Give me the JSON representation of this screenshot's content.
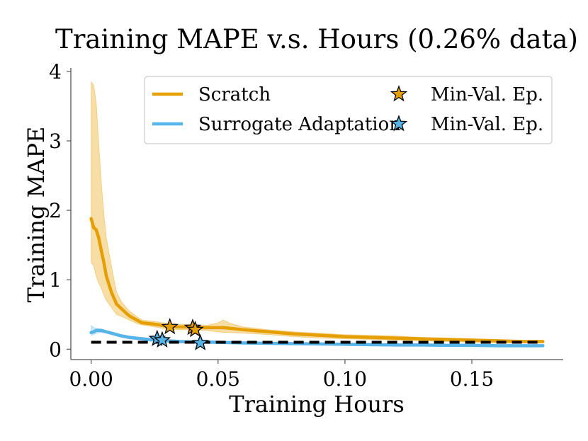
{
  "chart_data": {
    "type": "line",
    "title": "Training MAPE v.s. Hours (0.26% data)",
    "xlabel": "Training Hours",
    "ylabel": "Training MAPE",
    "xlim": [
      -0.008,
      0.186
    ],
    "ylim": [
      -0.15,
      4.05
    ],
    "xticks": [
      0.0,
      0.05,
      0.1,
      0.15
    ],
    "xtick_labels": [
      "0.00",
      "0.05",
      "0.10",
      "0.15"
    ],
    "yticks": [
      0,
      1,
      2,
      3,
      4
    ],
    "ytick_labels": [
      "0",
      "1",
      "2",
      "3",
      "4"
    ],
    "legend": {
      "placement": "top-right",
      "entries": [
        {
          "label": "Scratch",
          "marker": "line",
          "color": "#E69F00"
        },
        {
          "label": "Min-Val. Ep.",
          "marker": "star",
          "color": "#E69F00"
        },
        {
          "label": "Surrogate Adaptation",
          "marker": "line",
          "color": "#56B4E9"
        },
        {
          "label": "Min-Val. Ep.",
          "marker": "star",
          "color": "#56B4E9"
        }
      ]
    },
    "reference_line": {
      "y": 0.1,
      "style": "dashed",
      "color": "#000000"
    },
    "series": [
      {
        "name": "Scratch",
        "color": "#E69F00",
        "band_color": "#F2C66A",
        "x": [
          0.0,
          0.001,
          0.002,
          0.003,
          0.004,
          0.005,
          0.006,
          0.008,
          0.01,
          0.012,
          0.015,
          0.018,
          0.02,
          0.025,
          0.03,
          0.035,
          0.04,
          0.045,
          0.05,
          0.052,
          0.055,
          0.06,
          0.07,
          0.08,
          0.09,
          0.1,
          0.11,
          0.12,
          0.13,
          0.14,
          0.15,
          0.16,
          0.17,
          0.178
        ],
        "y": [
          1.88,
          1.75,
          1.72,
          1.6,
          1.42,
          1.25,
          1.05,
          0.82,
          0.65,
          0.58,
          0.48,
          0.42,
          0.38,
          0.36,
          0.33,
          0.32,
          0.32,
          0.31,
          0.31,
          0.31,
          0.3,
          0.28,
          0.25,
          0.22,
          0.2,
          0.18,
          0.17,
          0.16,
          0.15,
          0.14,
          0.13,
          0.12,
          0.11,
          0.11
        ],
        "upper": [
          3.85,
          3.8,
          3.55,
          2.95,
          2.4,
          1.95,
          1.6,
          1.2,
          0.82,
          0.68,
          0.55,
          0.47,
          0.42,
          0.4,
          0.37,
          0.36,
          0.35,
          0.34,
          0.38,
          0.42,
          0.37,
          0.32,
          0.28,
          0.25,
          0.23,
          0.21,
          0.2,
          0.19,
          0.17,
          0.16,
          0.15,
          0.14,
          0.13,
          0.13
        ],
        "lower": [
          1.25,
          1.2,
          1.05,
          0.95,
          0.88,
          0.78,
          0.7,
          0.6,
          0.5,
          0.47,
          0.42,
          0.37,
          0.35,
          0.32,
          0.29,
          0.28,
          0.28,
          0.27,
          0.25,
          0.24,
          0.24,
          0.23,
          0.21,
          0.18,
          0.16,
          0.15,
          0.14,
          0.13,
          0.12,
          0.11,
          0.1,
          0.09,
          0.09,
          0.09
        ]
      },
      {
        "name": "Surrogate Adaptation",
        "color": "#56B4E9",
        "band_color": "#A9D8F3",
        "x": [
          0.0,
          0.001,
          0.002,
          0.004,
          0.006,
          0.008,
          0.01,
          0.012,
          0.015,
          0.02,
          0.025,
          0.03,
          0.035,
          0.04,
          0.05,
          0.06,
          0.07,
          0.08,
          0.09,
          0.1,
          0.11,
          0.12,
          0.13,
          0.14,
          0.15,
          0.16,
          0.17,
          0.178
        ],
        "y": [
          0.24,
          0.25,
          0.27,
          0.27,
          0.25,
          0.23,
          0.21,
          0.19,
          0.17,
          0.15,
          0.13,
          0.12,
          0.11,
          0.105,
          0.1,
          0.09,
          0.085,
          0.08,
          0.075,
          0.07,
          0.065,
          0.06,
          0.06,
          0.055,
          0.055,
          0.05,
          0.05,
          0.05
        ],
        "upper": [
          0.34,
          0.31,
          0.3,
          0.29,
          0.27,
          0.25,
          0.23,
          0.21,
          0.19,
          0.17,
          0.15,
          0.14,
          0.13,
          0.12,
          0.115,
          0.105,
          0.1,
          0.095,
          0.09,
          0.085,
          0.08,
          0.075,
          0.075,
          0.07,
          0.07,
          0.065,
          0.065,
          0.065
        ],
        "lower": [
          0.2,
          0.21,
          0.23,
          0.24,
          0.23,
          0.21,
          0.19,
          0.17,
          0.15,
          0.13,
          0.11,
          0.1,
          0.09,
          0.085,
          0.08,
          0.075,
          0.07,
          0.065,
          0.06,
          0.055,
          0.05,
          0.045,
          0.045,
          0.04,
          0.04,
          0.035,
          0.035,
          0.035
        ]
      }
    ],
    "markers": [
      {
        "series": "Scratch",
        "x": 0.031,
        "y": 0.32,
        "color": "#E69F00"
      },
      {
        "series": "Scratch",
        "x": 0.04,
        "y": 0.31,
        "color": "#E69F00"
      },
      {
        "series": "Scratch",
        "x": 0.041,
        "y": 0.28,
        "color": "#E69F00"
      },
      {
        "series": "Surrogate Adaptation",
        "x": 0.026,
        "y": 0.15,
        "color": "#56B4E9"
      },
      {
        "series": "Surrogate Adaptation",
        "x": 0.028,
        "y": 0.13,
        "color": "#56B4E9"
      },
      {
        "series": "Surrogate Adaptation",
        "x": 0.043,
        "y": 0.09,
        "color": "#56B4E9"
      }
    ]
  }
}
